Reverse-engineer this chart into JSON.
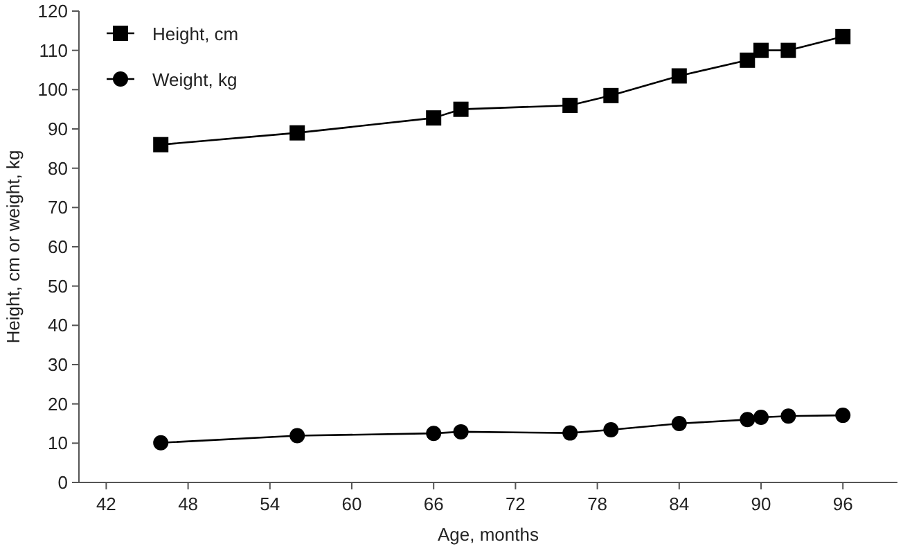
{
  "chart_data": {
    "type": "line",
    "xlabel": "Age, months",
    "ylabel": "Height, cm or weight, kg",
    "xlim": [
      40,
      100
    ],
    "xticks": [
      42,
      48,
      54,
      60,
      66,
      72,
      78,
      84,
      90,
      96
    ],
    "ylim": [
      0,
      120
    ],
    "yticks": [
      0,
      10,
      20,
      30,
      40,
      50,
      60,
      70,
      80,
      90,
      100,
      110,
      120
    ],
    "grid": false,
    "legend": "top left",
    "x": [
      46,
      56,
      66,
      68,
      76,
      79,
      84,
      89,
      90,
      92,
      96
    ],
    "series": [
      {
        "name": "Height, cm",
        "color": "#000000",
        "marker": "square",
        "values": [
          86,
          89,
          92.8,
          95,
          96,
          98.5,
          103.5,
          107.5,
          110,
          110,
          113.5
        ]
      },
      {
        "name": "Weight, kg",
        "color": "#000000",
        "marker": "circle",
        "values": [
          10.1,
          11.9,
          12.5,
          12.9,
          12.6,
          13.4,
          15,
          16,
          16.6,
          16.9,
          17.1
        ]
      }
    ]
  }
}
